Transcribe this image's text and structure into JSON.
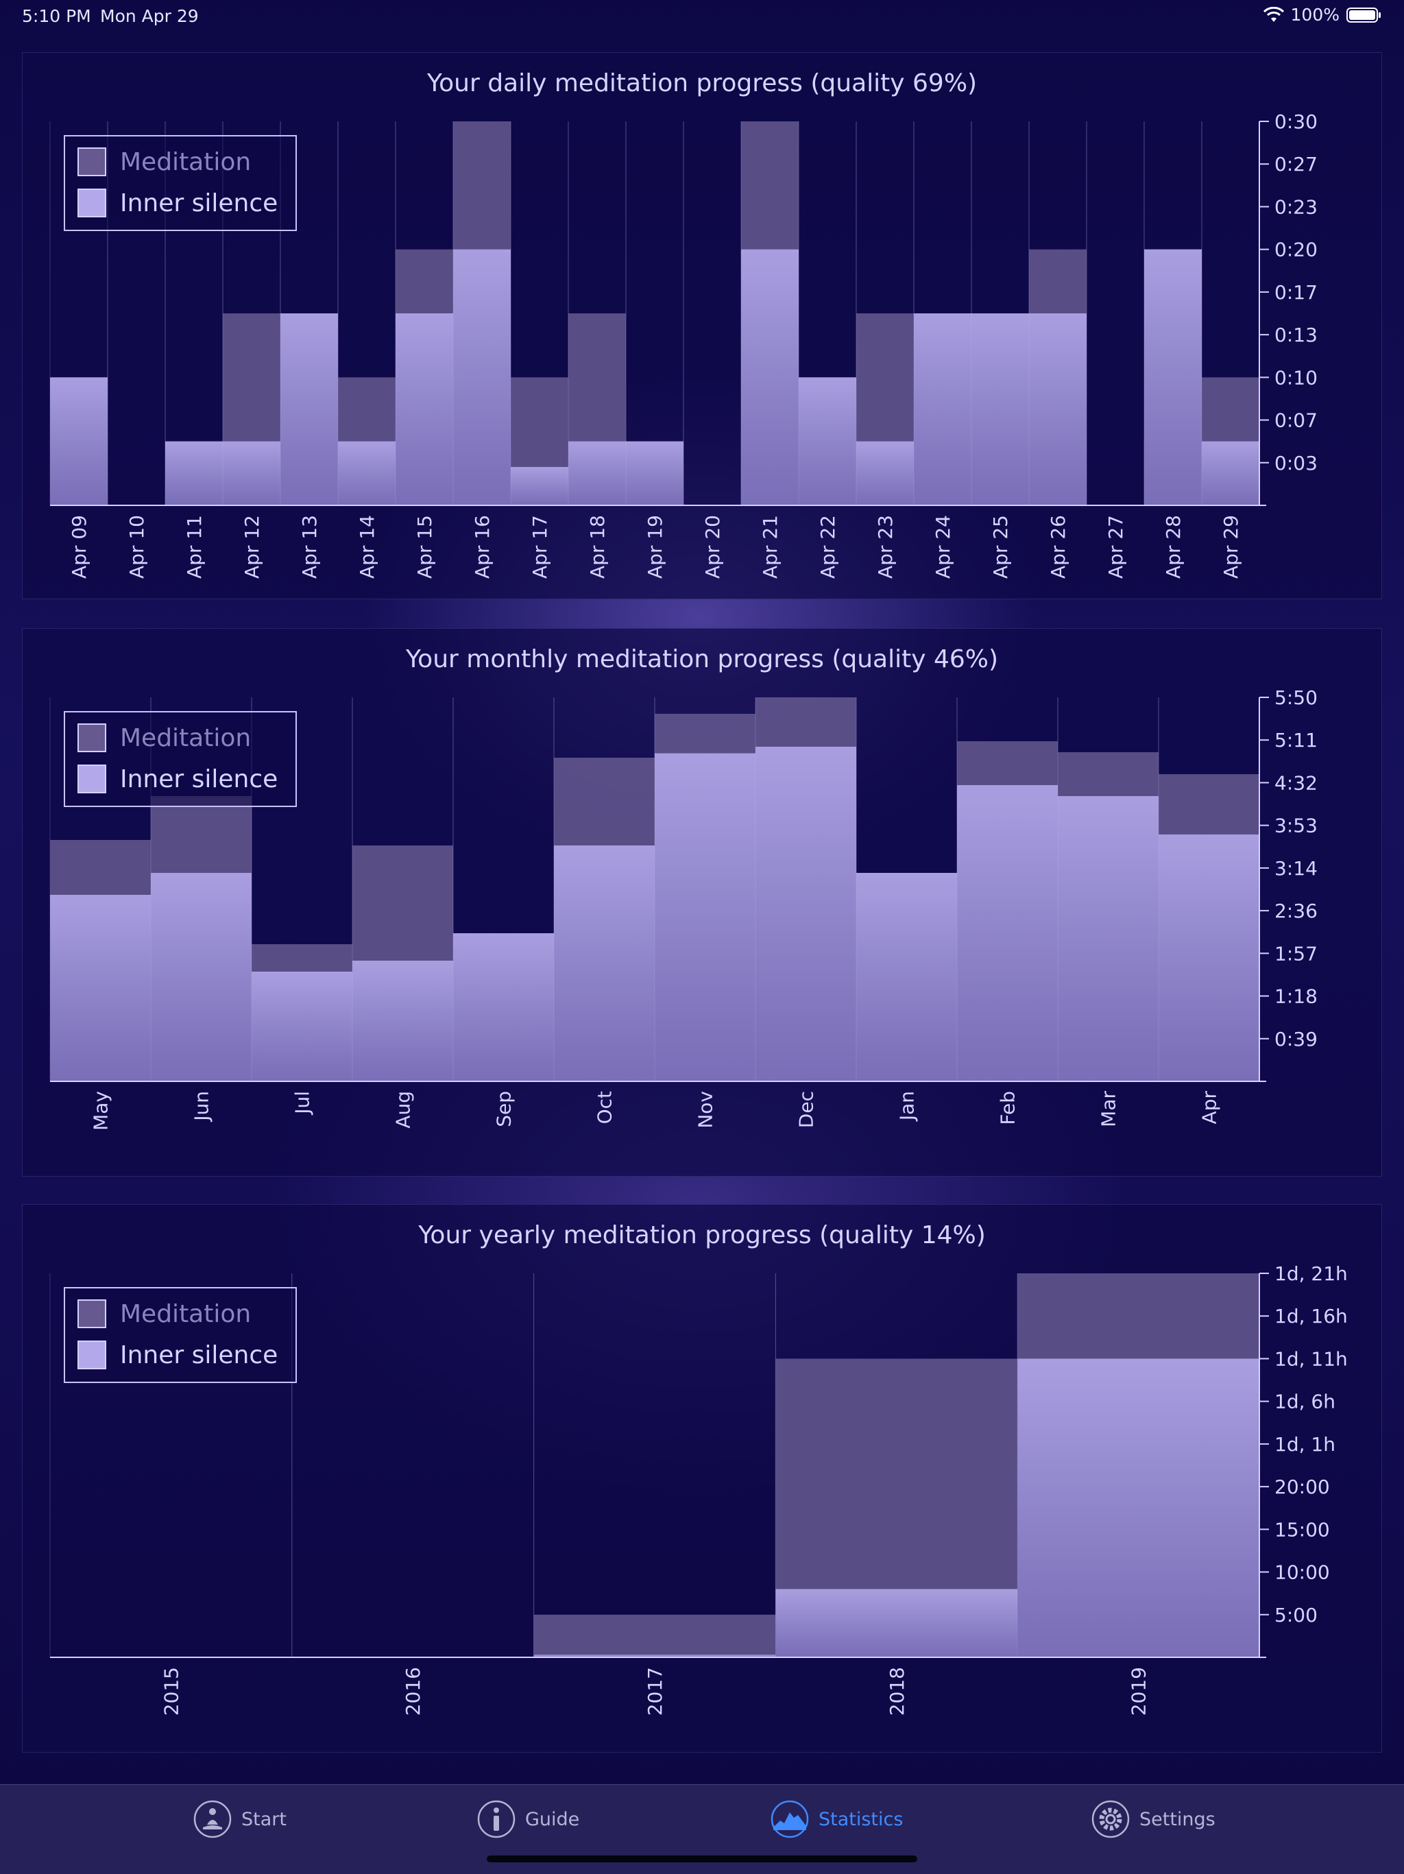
{
  "status_bar": {
    "time": "5:10 PM",
    "date": "Mon Apr 29",
    "battery": "100%"
  },
  "legend": {
    "meditation": "Meditation",
    "inner_silence": "Inner silence"
  },
  "colors": {
    "meditation": "#65598f",
    "inner_silence": "#a99fe0",
    "accent": "#3f8bff"
  },
  "chart_data": [
    {
      "type": "bar",
      "title": "Your daily meditation progress (quality 69%)",
      "categories": [
        "Apr 09",
        "Apr 10",
        "Apr 11",
        "Apr 12",
        "Apr 13",
        "Apr 14",
        "Apr 15",
        "Apr 16",
        "Apr 17",
        "Apr 18",
        "Apr 19",
        "Apr 20",
        "Apr 21",
        "Apr 22",
        "Apr 23",
        "Apr 24",
        "Apr 25",
        "Apr 26",
        "Apr 27",
        "Apr 28",
        "Apr 29"
      ],
      "series": [
        {
          "name": "Meditation",
          "unit": "minutes",
          "values": [
            10,
            0,
            5,
            15,
            15,
            10,
            20,
            30,
            10,
            15,
            5,
            0,
            30,
            10,
            15,
            15,
            15,
            20,
            0,
            20,
            10
          ]
        },
        {
          "name": "Inner silence",
          "unit": "minutes",
          "values": [
            10,
            0,
            5,
            5,
            15,
            5,
            15,
            20,
            3,
            5,
            5,
            0,
            20,
            10,
            5,
            15,
            15,
            15,
            0,
            20,
            5
          ]
        }
      ],
      "yticks": [
        "0:03",
        "0:07",
        "0:10",
        "0:13",
        "0:17",
        "0:20",
        "0:23",
        "0:27",
        "0:30"
      ],
      "ylim": [
        0,
        30
      ],
      "legend": "top-left"
    },
    {
      "type": "bar",
      "title": "Your monthly meditation progress (quality 46%)",
      "categories": [
        "May",
        "Jun",
        "Jul",
        "Aug",
        "Sep",
        "Oct",
        "Nov",
        "Dec",
        "Jan",
        "Feb",
        "Mar",
        "Apr"
      ],
      "series": [
        {
          "name": "Meditation",
          "unit": "minutes",
          "values": [
            220,
            260,
            125,
            215,
            130,
            295,
            335,
            350,
            175,
            310,
            300,
            280
          ]
        },
        {
          "name": "Inner silence",
          "unit": "minutes",
          "values": [
            170,
            190,
            100,
            110,
            135,
            215,
            299,
            305,
            190,
            270,
            260,
            225
          ]
        }
      ],
      "yticks": [
        "0:39",
        "1:18",
        "1:57",
        "2:36",
        "3:14",
        "3:53",
        "4:32",
        "5:11",
        "5:50"
      ],
      "ylim": [
        0,
        350
      ],
      "legend": "top-left"
    },
    {
      "type": "bar",
      "title": "Your yearly meditation progress (quality 14%)",
      "categories": [
        "2015",
        "2016",
        "2017",
        "2018",
        "2019"
      ],
      "series": [
        {
          "name": "Meditation",
          "unit": "hours",
          "values": [
            0,
            0,
            5,
            35,
            45
          ]
        },
        {
          "name": "Inner silence",
          "unit": "hours",
          "values": [
            0,
            0,
            0.3,
            8,
            35
          ]
        }
      ],
      "yticks": [
        "5:00",
        "10:00",
        "15:00",
        "20:00",
        "1d, 1h",
        "1d, 6h",
        "1d, 11h",
        "1d, 16h",
        "1d, 21h"
      ],
      "ylim": [
        0,
        45
      ],
      "legend": "top-left"
    }
  ],
  "tabs": [
    {
      "label": "Start",
      "icon": "meditation-figure-icon"
    },
    {
      "label": "Guide",
      "icon": "info-icon"
    },
    {
      "label": "Statistics",
      "icon": "mountain-graph-icon"
    },
    {
      "label": "Settings",
      "icon": "gear-icon"
    }
  ]
}
